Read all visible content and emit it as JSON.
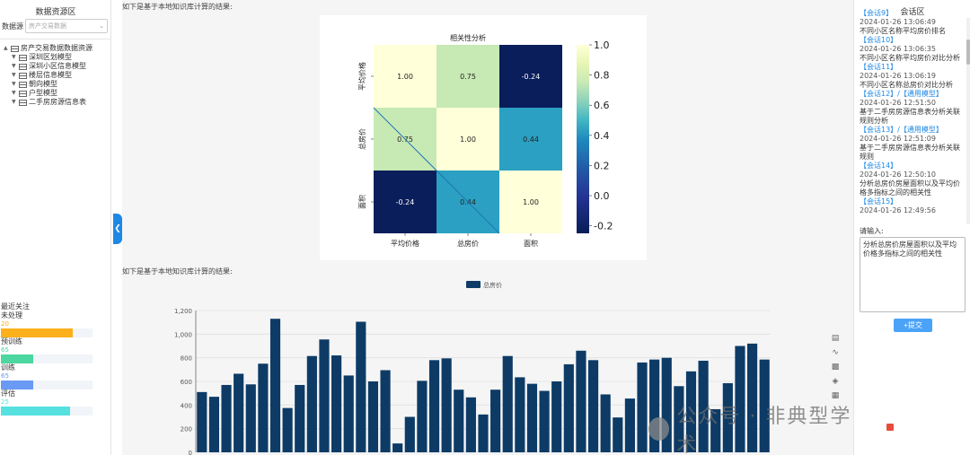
{
  "left_panel": {
    "title": "数据资源区",
    "source_label": "数据源",
    "source_placeholder": "房产交易数据",
    "tree": {
      "root": "房产交易数据数据资源",
      "children": [
        "深圳区划模型",
        "深圳小区信息模型",
        "楼层信息模型",
        "朝向模型",
        "户型模型",
        "二手房房源信息表"
      ]
    },
    "recent": {
      "header": "最近关注",
      "items": [
        {
          "label": "未处理",
          "value": "20",
          "fraction": 0.78,
          "color": "#fbb01c"
        },
        {
          "label": "预训练",
          "value": "65",
          "fraction": 0.35,
          "color": "#4cd6a0"
        },
        {
          "label": "训练",
          "value": "65",
          "fraction": 0.35,
          "color": "#6b9af4"
        },
        {
          "label": "评估",
          "value": "25",
          "fraction": 0.75,
          "color": "#56e0e0"
        }
      ]
    }
  },
  "main": {
    "note1": "如下是基于本地知识库计算的结果:",
    "note2": "如下是基于本地知识库计算的结果:",
    "watermark": "公众号 · 非典型学术"
  },
  "heatmap": {
    "title": "相关性分析",
    "labels": [
      "平均价格",
      "总房价",
      "面积"
    ],
    "matrix": [
      [
        1.0,
        0.75,
        -0.24
      ],
      [
        0.75,
        1.0,
        0.44
      ],
      [
        -0.24,
        0.44,
        1.0
      ]
    ],
    "cell_text": [
      [
        "1.00",
        "0.75",
        "-0.24"
      ],
      [
        "0.75",
        "1.00",
        "0.44"
      ],
      [
        "-0.24",
        "0.44",
        "1.00"
      ]
    ],
    "colorbar_ticks": [
      "1.0",
      "0.8",
      "0.6",
      "0.4",
      "0.2",
      "0.0",
      "-0.2"
    ]
  },
  "chart_data": {
    "type": "bar",
    "legend": "总房价",
    "ylim": [
      0,
      1200
    ],
    "yticks": [
      "0",
      "200",
      "400",
      "600",
      "800",
      "1,000",
      "1,200"
    ],
    "values": [
      510,
      470,
      570,
      665,
      575,
      750,
      1130,
      375,
      570,
      815,
      955,
      820,
      650,
      1105,
      600,
      695,
      75,
      300,
      605,
      780,
      795,
      530,
      465,
      320,
      530,
      815,
      635,
      580,
      520,
      600,
      745,
      860,
      780,
      490,
      295,
      455,
      760,
      785,
      800,
      560,
      685,
      775,
      365,
      585,
      900,
      920,
      785
    ]
  },
  "right_panel": {
    "title": "会话区",
    "sessions": [
      {
        "name": "【会话9】",
        "time": "2024-01-26 13:06:49",
        "text": "不同小区名称平均房价排名"
      },
      {
        "name": "【会话10】",
        "time": "2024-01-26 13:06:35",
        "text": "不同小区名称平均房价对比分析"
      },
      {
        "name": "【会话11】",
        "time": "2024-01-26 13:06:19",
        "text": "不同小区名称总房价对比分析"
      },
      {
        "name": "【会话12】/【通用模型】",
        "time": "2024-01-26 12:51:50",
        "text": "基于二手房房源信息表分析关联规则分析"
      },
      {
        "name": "【会话13】/【通用模型】",
        "time": "2024-01-26 12:51:09",
        "text": "基于二手房房源信息表分析关联规则"
      },
      {
        "name": "【会话14】",
        "time": "2024-01-26 12:50:10",
        "text": "分析总房价房屋面积以及平均价格多指标之间的相关性"
      },
      {
        "name": "【会话15】",
        "time": "2024-01-26 12:49:56",
        "text": ""
      }
    ],
    "prompt_label": "请输入:",
    "prompt_value": "分析总房价房屋面积以及平均价格多指标之间的相关性",
    "submit_label": "+提交"
  }
}
